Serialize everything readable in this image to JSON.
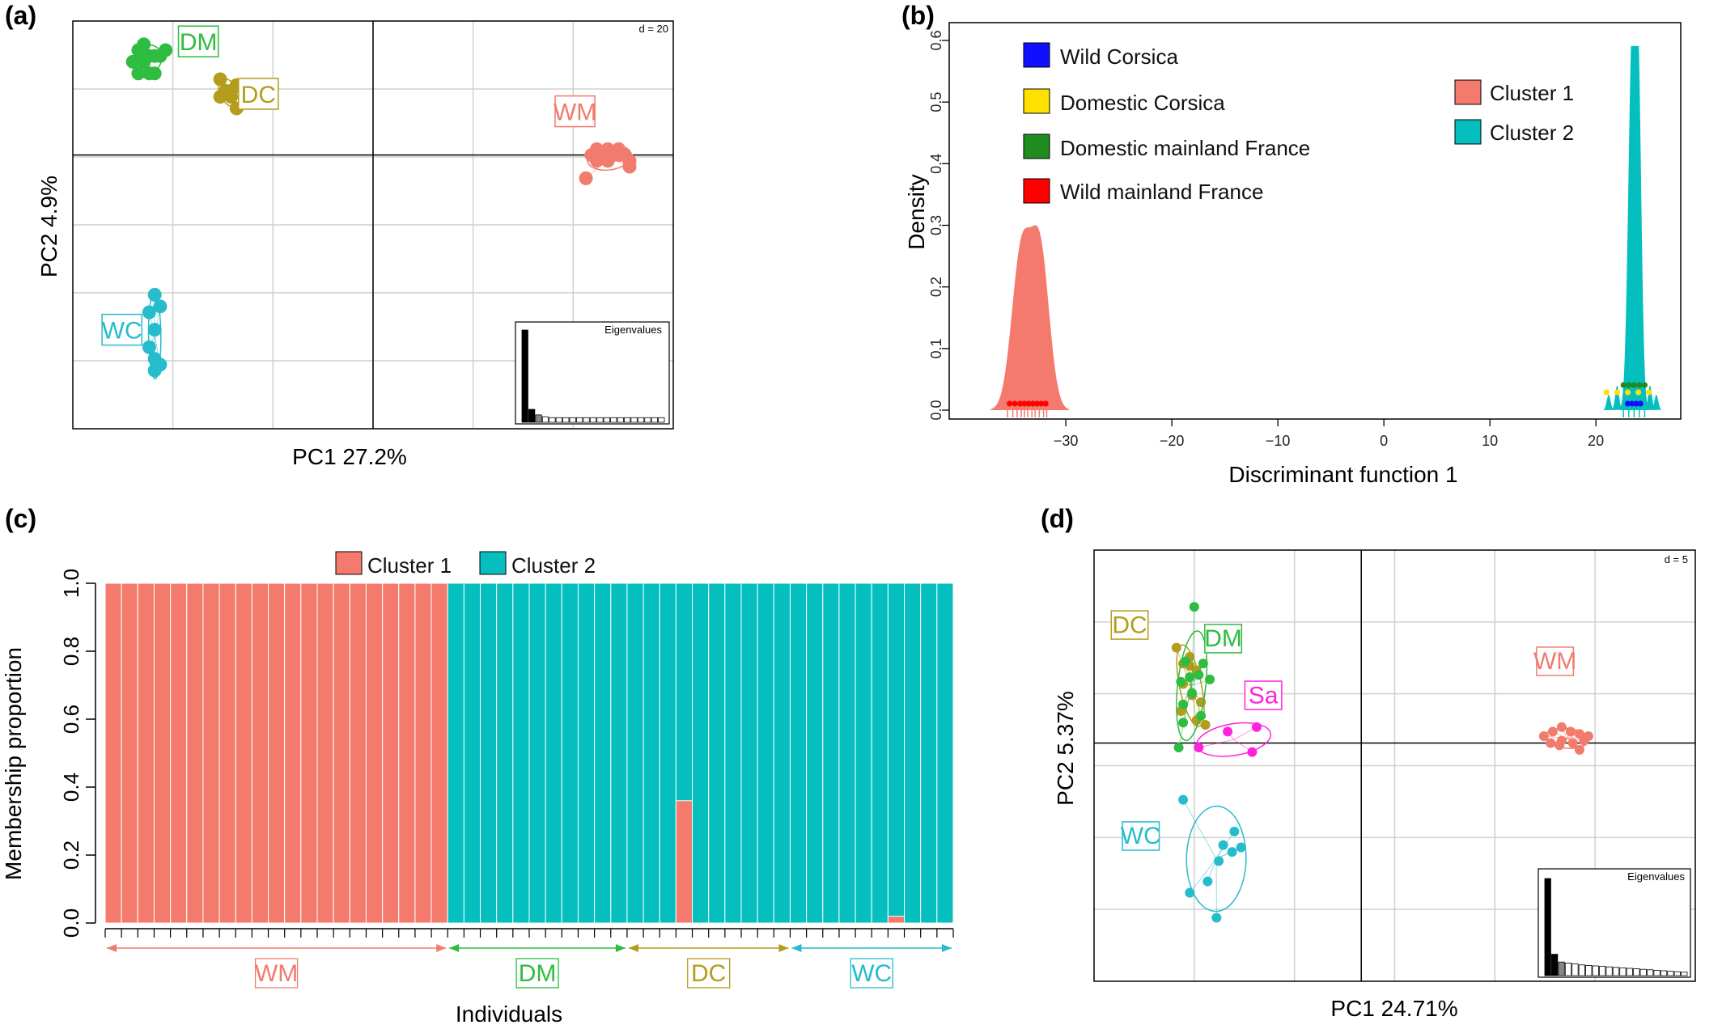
{
  "colors": {
    "DM": "#2ebc41",
    "DC": "#b49c1c",
    "WM": "#f17b6c",
    "WC": "#27bccc",
    "Sa": "#ff22dd",
    "cluster1": "#f47a6d",
    "cluster2": "#05bfbf",
    "wild_corsica": "#1010ff",
    "domestic_corsica": "#ffe000",
    "domestic_mainland": "#1e8c1e",
    "wild_mainland": "#ff0000"
  },
  "chart_data": [
    {
      "panel": "(a)",
      "type": "scatter",
      "xlabel": "PC1 27.2%",
      "ylabel": "PC2 4.9%",
      "scale_label": "d = 20",
      "inset_title": "Eigenvalues",
      "xlim": [
        -55,
        55
      ],
      "ylim": [
        -47,
        23
      ],
      "groups": [
        {
          "name": "DM",
          "label_pos": [
            -32,
            19.5
          ],
          "x": [
            -43,
            -42,
            -41,
            -42,
            -40,
            -39,
            -44,
            -38,
            -42,
            -41,
            -43,
            -40,
            -42
          ],
          "y": [
            18,
            17,
            17,
            16,
            17,
            17,
            16,
            18,
            16,
            14,
            14,
            14,
            19
          ]
        },
        {
          "name": "DC",
          "label_pos": [
            -21,
            10.5
          ],
          "x": [
            -28,
            -27,
            -26,
            -25,
            -28,
            -26,
            -25
          ],
          "y": [
            13,
            11,
            11,
            12,
            10,
            10,
            8
          ]
        },
        {
          "name": "WM",
          "label_pos": [
            37,
            7.5
          ],
          "x": [
            40,
            41,
            42,
            43,
            44,
            45,
            46,
            47,
            41,
            43,
            45,
            47,
            39
          ],
          "y": [
            0,
            1,
            0,
            1,
            0,
            1,
            0,
            -1,
            -1,
            -1,
            0,
            -2,
            -4
          ]
        },
        {
          "name": "WC",
          "label_pos": [
            -46,
            -30
          ],
          "x": [
            -40,
            -39,
            -41,
            -40,
            -41,
            -40,
            -39,
            -40
          ],
          "y": [
            -24,
            -26,
            -27,
            -30,
            -33,
            -35,
            -36,
            -37
          ]
        }
      ],
      "eigenvalues": [
        1.0,
        0.14,
        0.08,
        0.06,
        0.05,
        0.05,
        0.05,
        0.05,
        0.05,
        0.05,
        0.05,
        0.05,
        0.05,
        0.05,
        0.05,
        0.05,
        0.05,
        0.05,
        0.05,
        0.05,
        0.05
      ]
    },
    {
      "panel": "(b)",
      "type": "area",
      "xlabel": "Discriminant function 1",
      "ylabel": "Density",
      "xlim": [
        -41,
        28
      ],
      "ylim": [
        0,
        0.6
      ],
      "xticks": [
        -30,
        -20,
        -10,
        0,
        10,
        20
      ],
      "yticks": [
        0.0,
        0.1,
        0.2,
        0.3,
        0.4,
        0.5,
        0.6
      ],
      "legend_left": [
        "Wild Corsica",
        "Domestic Corsica",
        "Domestic mainland France",
        "Wild mainland France"
      ],
      "legend_right": [
        "Cluster 1",
        "Cluster 2"
      ],
      "series": [
        {
          "name": "Cluster 1",
          "peaks": [
            [
              -34.2,
              0.255,
              0.9
            ],
            [
              -32.4,
              0.25,
              0.85
            ]
          ]
        },
        {
          "name": "Cluster 2",
          "peaks": [
            [
              23.4,
              0.58,
              0.35
            ],
            [
              24.0,
              0.5,
              0.3
            ]
          ]
        }
      ],
      "rug_cluster1": [
        -35.5,
        -35.0,
        -34.6,
        -34.2,
        -33.9,
        -33.6,
        -33.2,
        -32.9,
        -32.5,
        -32.1,
        -31.8
      ],
      "points_wild_mainland": [
        -35.3,
        -34.8,
        -34.3,
        -33.9,
        -33.5,
        -33.1,
        -32.7,
        -32.3,
        -31.9
      ],
      "points_domestic_mainland": [
        22.6,
        23.1,
        23.6,
        24.1,
        24.6
      ],
      "points_domestic_corsica": [
        21.0,
        22.0,
        23.0,
        24.0,
        25.0
      ],
      "points_wild_corsica": [
        23.0,
        23.4,
        23.8,
        24.2
      ]
    },
    {
      "panel": "(c)",
      "type": "bar",
      "xlabel": "Individuals",
      "ylabel": "Membership proportion",
      "ylim": [
        0,
        1.0
      ],
      "yticks": [
        0.0,
        0.2,
        0.4,
        0.6,
        0.8,
        1.0
      ],
      "legend": [
        "Cluster 1",
        "Cluster 2"
      ],
      "n_individuals": 52,
      "cluster1": [
        1,
        1,
        1,
        1,
        1,
        1,
        1,
        1,
        1,
        1,
        1,
        1,
        1,
        1,
        1,
        1,
        1,
        1,
        1,
        1,
        1,
        0,
        0,
        0,
        0,
        0,
        0,
        0,
        0,
        0,
        0,
        0,
        0,
        0,
        0,
        0.36,
        0,
        0,
        0,
        0,
        0,
        0,
        0,
        0,
        0,
        0,
        0,
        0,
        0.02,
        0,
        0,
        0
      ],
      "groups": [
        {
          "name": "WM",
          "start": 0,
          "end": 21
        },
        {
          "name": "DM",
          "start": 21,
          "end": 32
        },
        {
          "name": "DC",
          "start": 32,
          "end": 42
        },
        {
          "name": "WC",
          "start": 42,
          "end": 52
        }
      ]
    },
    {
      "panel": "(d)",
      "type": "scatter",
      "xlabel": "PC1 24.71%",
      "ylabel": "PC2 5.37%",
      "scale_label": "d = 5",
      "inset_title": "Eigenvalues",
      "xlim": [
        -12,
        15
      ],
      "ylim": [
        -10.5,
        8.5
      ],
      "groups": [
        {
          "name": "DC",
          "label_pos": [
            -10.4,
            5.2
          ],
          "x": [
            -8.3,
            -8.0,
            -7.7,
            -7.4,
            -8.0,
            -7.6,
            -7.2,
            -8.1,
            -7.4,
            -7.0,
            -7.7
          ],
          "y": [
            4.2,
            3.5,
            3.8,
            3.2,
            2.6,
            2.1,
            1.8,
            1.4,
            1.0,
            0.8,
            3.4
          ]
        },
        {
          "name": "DM",
          "label_pos": [
            -6.2,
            4.6
          ],
          "x": [
            -7.5,
            -7.9,
            -7.1,
            -7.3,
            -7.7,
            -8.1,
            -6.8,
            -7.6,
            -8.0,
            -7.2,
            -8.0,
            -8.2
          ],
          "y": [
            6.0,
            3.6,
            3.5,
            3.0,
            2.9,
            2.7,
            2.8,
            2.2,
            1.7,
            1.2,
            0.9,
            -0.2
          ]
        },
        {
          "name": "Sa",
          "label_pos": [
            -4.4,
            2.1
          ],
          "x": [
            -7.3,
            -6.0,
            -4.7,
            -4.9
          ],
          "y": [
            -0.2,
            0.5,
            0.7,
            -0.4
          ]
        },
        {
          "name": "WM",
          "label_pos": [
            8.7,
            3.6
          ],
          "x": [
            8.2,
            8.6,
            9.0,
            9.4,
            9.8,
            10.2,
            8.5,
            9.0,
            9.5,
            10.0,
            9.8,
            8.9
          ],
          "y": [
            0.3,
            0.5,
            0.7,
            0.5,
            0.4,
            0.3,
            0.0,
            0.1,
            0.0,
            0.1,
            -0.3,
            -0.1
          ]
        },
        {
          "name": "WC",
          "label_pos": [
            -9.9,
            -4.1
          ],
          "x": [
            -8.0,
            -5.7,
            -6.2,
            -5.4,
            -5.8,
            -6.4,
            -6.9,
            -7.7,
            -6.5
          ],
          "y": [
            -2.5,
            -3.9,
            -4.5,
            -4.6,
            -4.8,
            -5.2,
            -6.1,
            -6.6,
            -7.7
          ]
        }
      ],
      "eigenvalues": [
        1.0,
        0.22,
        0.14,
        0.13,
        0.12,
        0.11,
        0.105,
        0.1,
        0.095,
        0.09,
        0.085,
        0.08,
        0.075,
        0.07,
        0.065,
        0.06,
        0.055,
        0.05,
        0.045,
        0.04,
        0.035
      ]
    }
  ]
}
